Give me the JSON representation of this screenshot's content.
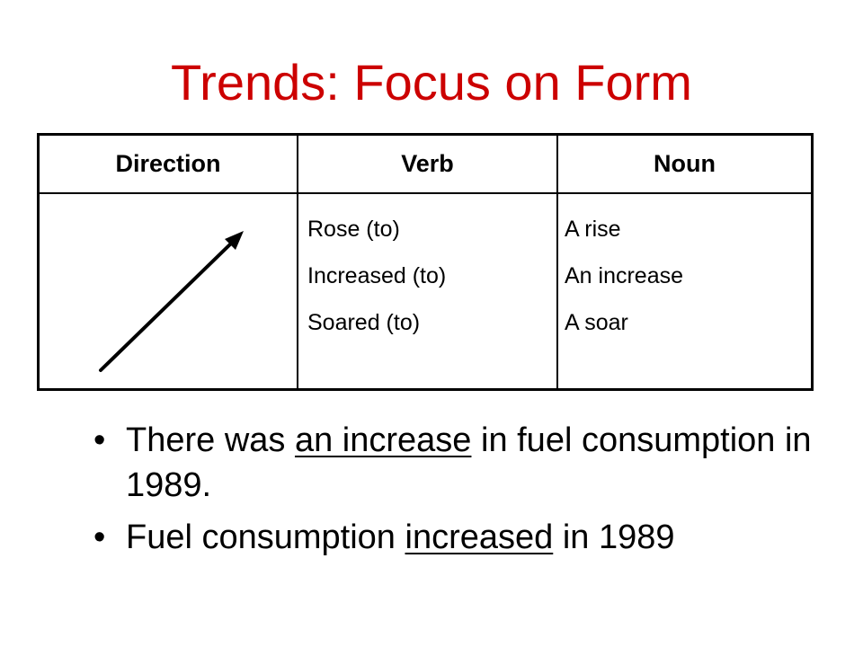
{
  "slide": {
    "title": "Trends: Focus on Form",
    "title_color": "#cc0000"
  },
  "table": {
    "headers": {
      "direction": "Direction",
      "verb": "Verb",
      "noun": "Noun"
    },
    "direction_icon": "upward-diagonal-arrow-icon",
    "verbs": [
      "Rose (to)",
      "Increased (to)",
      "Soared (to)"
    ],
    "nouns": [
      "A rise",
      "An increase",
      "A soar"
    ]
  },
  "bullets": {
    "marker": "•",
    "first": {
      "before": "There was ",
      "underlined": "an increase",
      "after": " in fuel consumption in 1989."
    },
    "second": {
      "before": "Fuel consumption ",
      "underlined": "increased",
      "after": " in 1989"
    }
  }
}
